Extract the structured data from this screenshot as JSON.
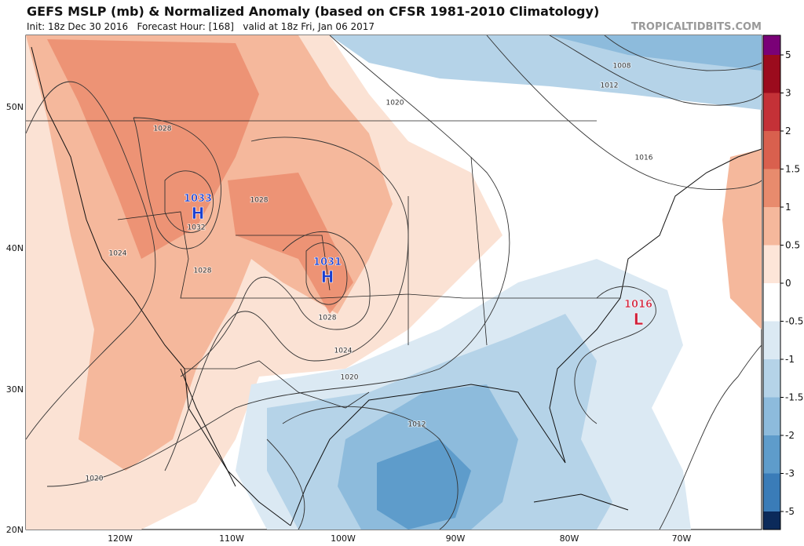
{
  "header": {
    "title": "GEFS MSLP (mb) & Normalized Anomaly (based on CFSR 1981-2010 Climatology)",
    "subtitle": "Init: 18z Dec 30 2016   Forecast Hour: [168]   valid at 18z Fri, Jan 06 2017",
    "watermark": "TROPICALTIDBITS.COM"
  },
  "map": {
    "lon_labels": [
      "120W",
      "110W",
      "100W",
      "90W",
      "80W",
      "70W"
    ],
    "lat_labels": [
      "50N",
      "40N",
      "30N",
      "20N"
    ],
    "contour_labels": [
      "1008",
      "1012",
      "1016",
      "1020",
      "1028",
      "1028",
      "1032",
      "1024",
      "1028",
      "1028",
      "1024",
      "1020",
      "1012",
      "1020"
    ],
    "centers": [
      {
        "pressure": "1033",
        "type": "H",
        "color": "#1a3fd0"
      },
      {
        "pressure": "1031",
        "type": "H",
        "color": "#1a3fd0"
      },
      {
        "pressure": "1016",
        "type": "L",
        "color": "#d0203a"
      }
    ]
  },
  "colorbar": {
    "labels": [
      "5",
      "3",
      "2",
      "1.5",
      "1",
      "0.5",
      "0",
      "-0.5",
      "-1",
      "-1.5",
      "-2",
      "-3",
      "-5"
    ],
    "colors": [
      "#7a0177",
      "#9b0b1d",
      "#c43137",
      "#d9604e",
      "#e88b6d",
      "#f5b89c",
      "#fde5d8",
      "#ffffff",
      "#dbe9f3",
      "#b5d3e8",
      "#8dbbdc",
      "#5e9ccb",
      "#3a7cb8",
      "#0b2a5a"
    ]
  }
}
